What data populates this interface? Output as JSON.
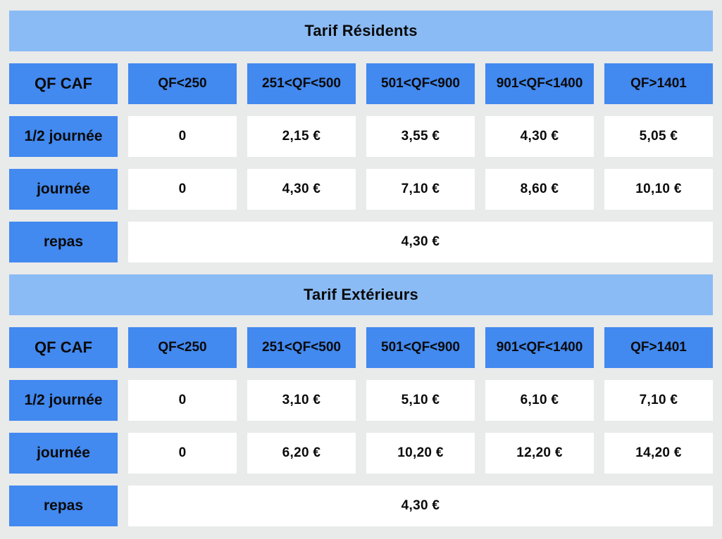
{
  "colors": {
    "background": "#e9eaea",
    "title_bar": "#8abbf5",
    "header_cell": "#4289f0",
    "cell_bg": "#ffffff",
    "text": "#0a0a0a"
  },
  "chart_data": [
    {
      "type": "table",
      "title": "Tarif Résidents",
      "columns": [
        "QF CAF",
        "QF<250",
        "251<QF<500",
        "501<QF<900",
        "901<QF<1400",
        "QF>1401"
      ],
      "rows": [
        [
          "1/2 journée",
          "0",
          "2,15 €",
          "3,55 €",
          "4,30 €",
          "5,05 €"
        ],
        [
          "journée",
          "0",
          "4,30 €",
          "7,10 €",
          "8,60 €",
          "10,10 €"
        ],
        [
          "repas",
          "4,30 €"
        ]
      ],
      "notes": "repas price spans all five QF columns"
    },
    {
      "type": "table",
      "title": "Tarif Extérieurs",
      "columns": [
        "QF CAF",
        "QF<250",
        "251<QF<500",
        "501<QF<900",
        "901<QF<1400",
        "QF>1401"
      ],
      "rows": [
        [
          "1/2 journée",
          "0",
          "3,10 €",
          "5,10 €",
          "6,10 €",
          "7,10 €"
        ],
        [
          "journée",
          "0",
          "6,20 €",
          "10,20 €",
          "12,20 €",
          "14,20 €"
        ],
        [
          "repas",
          "4,30 €"
        ]
      ],
      "notes": "repas price spans all five QF columns"
    }
  ]
}
